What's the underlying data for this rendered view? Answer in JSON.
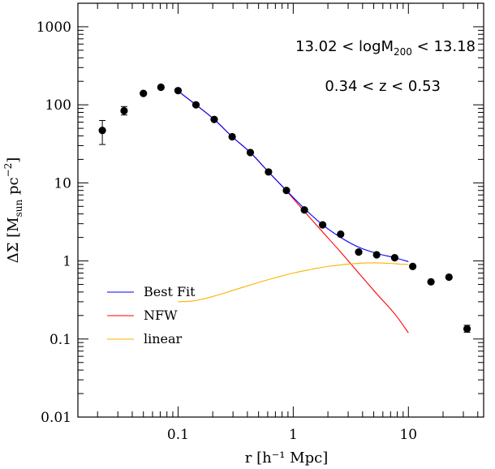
{
  "chart_data": {
    "type": "scatter",
    "x_scale": "log",
    "y_scale": "log",
    "xlim": [
      0.0135,
      45
    ],
    "ylim": [
      0.01,
      2000
    ],
    "xlabel": "r  [h⁻¹ Mpc]",
    "ylabel": "ΔΣ  [M",
    "ylabel_sub": "sun",
    "ylabel_tail": "  pc",
    "ylabel_sup": "−2",
    "ylabel_end": "]",
    "x_ticks": [
      {
        "value": 0.1,
        "label": "0.1"
      },
      {
        "value": 1,
        "label": "1"
      },
      {
        "value": 10,
        "label": "10"
      }
    ],
    "y_ticks": [
      {
        "value": 0.01,
        "label": "0.01"
      },
      {
        "value": 0.1,
        "label": "0.1"
      },
      {
        "value": 1,
        "label": "1"
      },
      {
        "value": 10,
        "label": "10"
      },
      {
        "value": 100,
        "label": "100"
      },
      {
        "value": 1000,
        "label": "1000"
      }
    ],
    "annotations": {
      "mass_prefix": "13.02  <  logM",
      "mass_sub": "200",
      "mass_suffix": "  <  13.18",
      "redshift": "0.34  <  z  <  0.53"
    },
    "legend": {
      "placement": "lower-left",
      "entries": [
        {
          "label": "Best Fit",
          "color": "#0000ff"
        },
        {
          "label": "NFW",
          "color": "#ff0000"
        },
        {
          "label": "linear",
          "color": "#ffb000"
        }
      ]
    },
    "points": [
      {
        "x": 0.022,
        "y": 47,
        "ylow": 31,
        "yhigh": 63
      },
      {
        "x": 0.034,
        "y": 84,
        "ylow": 74,
        "yhigh": 95
      },
      {
        "x": 0.05,
        "y": 140
      },
      {
        "x": 0.071,
        "y": 168
      },
      {
        "x": 0.1,
        "y": 152
      },
      {
        "x": 0.143,
        "y": 100
      },
      {
        "x": 0.206,
        "y": 65
      },
      {
        "x": 0.295,
        "y": 39
      },
      {
        "x": 0.424,
        "y": 24.5
      },
      {
        "x": 0.61,
        "y": 13.8
      },
      {
        "x": 0.873,
        "y": 8
      },
      {
        "x": 1.25,
        "y": 4.5
      },
      {
        "x": 1.8,
        "y": 2.9
      },
      {
        "x": 2.58,
        "y": 2.2
      },
      {
        "x": 3.7,
        "y": 1.3
      },
      {
        "x": 5.3,
        "y": 1.2
      },
      {
        "x": 7.6,
        "y": 1.1
      },
      {
        "x": 10.9,
        "y": 0.85
      },
      {
        "x": 15.7,
        "y": 0.54
      },
      {
        "x": 22.5,
        "y": 0.62
      },
      {
        "x": 32.3,
        "y": 0.135,
        "ylow": 0.122,
        "yhigh": 0.15
      }
    ],
    "series": [
      {
        "name": "NFW",
        "color": "#ff0000",
        "x": [
          0.1,
          0.143,
          0.206,
          0.295,
          0.424,
          0.61,
          0.873,
          1.25,
          1.8,
          2.58,
          3.7,
          5.3,
          7.6,
          10
        ],
        "y": [
          150,
          100,
          65,
          39,
          24.5,
          13.8,
          7.9,
          4.3,
          2.35,
          1.3,
          0.7,
          0.38,
          0.21,
          0.12
        ]
      },
      {
        "name": "Best Fit",
        "color": "#0000ff",
        "x": [
          0.1,
          0.143,
          0.206,
          0.295,
          0.424,
          0.61,
          0.873,
          1.25,
          1.8,
          2.58,
          3.7,
          5.3,
          7.6,
          10
        ],
        "y": [
          150,
          100,
          65,
          39,
          24.5,
          13.8,
          8,
          4.7,
          2.9,
          2.0,
          1.5,
          1.25,
          1.1,
          0.98
        ]
      },
      {
        "name": "linear",
        "color": "#ffb000",
        "x": [
          0.1,
          0.14,
          0.2,
          0.3,
          0.5,
          0.7,
          1,
          1.5,
          2,
          3,
          4,
          5,
          6,
          7,
          8.5,
          10
        ],
        "y": [
          0.3,
          0.31,
          0.35,
          0.42,
          0.53,
          0.61,
          0.7,
          0.79,
          0.85,
          0.91,
          0.94,
          0.945,
          0.94,
          0.93,
          0.91,
          0.9
        ]
      }
    ]
  }
}
